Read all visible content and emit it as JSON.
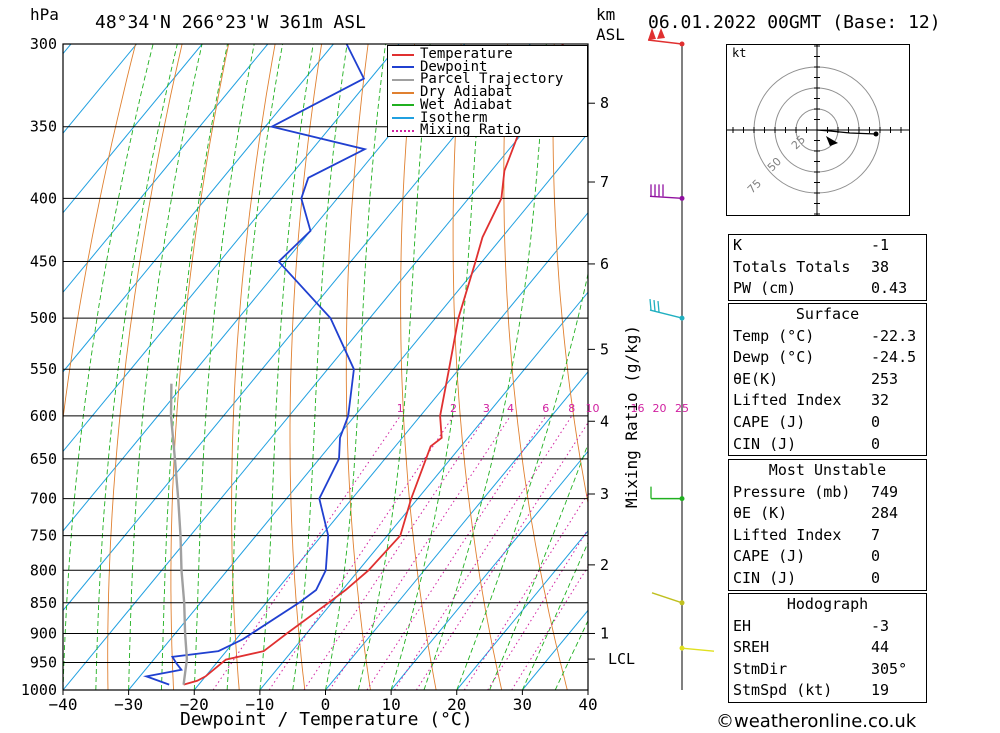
{
  "header": {
    "pressure_unit": "hPa",
    "location": "48°34'N 266°23'W 361m ASL",
    "height_unit": "km",
    "height_unit2": "ASL",
    "datetime": "06.01.2022 00GMT (Base: 12)"
  },
  "chart_data": {
    "type": "line",
    "title": "",
    "xlabel": "Dewpoint / Temperature (°C)",
    "ylabel": "hPa",
    "xlim": [
      -40,
      40
    ],
    "ylim": [
      1000,
      300
    ],
    "pressure_ticks": [
      300,
      350,
      400,
      450,
      500,
      550,
      600,
      650,
      700,
      750,
      800,
      850,
      900,
      950,
      1000
    ],
    "temperature_ticks": [
      -40,
      -30,
      -20,
      -10,
      0,
      10,
      20,
      30,
      40
    ],
    "height_ticks_km": [
      {
        "label": "8",
        "p": 335
      },
      {
        "label": "7",
        "p": 388
      },
      {
        "label": "6",
        "p": 452
      },
      {
        "label": "5",
        "p": 530
      },
      {
        "label": "4",
        "p": 606
      },
      {
        "label": "3",
        "p": 694
      },
      {
        "label": "2",
        "p": 792
      },
      {
        "label": "1",
        "p": 900
      },
      {
        "label": "LCL",
        "p": 944
      }
    ],
    "mixing_ratio_label": "Mixing Ratio (g/kg)",
    "mixing_ratio_values": [
      "1",
      "2",
      "3",
      "4",
      "6",
      "8",
      "10",
      "16",
      "20",
      "25"
    ],
    "legend": {
      "placement": "top-right",
      "entries": [
        {
          "name": "Temperature",
          "color": "#e03030",
          "style": "solid"
        },
        {
          "name": "Dewpoint",
          "color": "#2040d0",
          "style": "solid"
        },
        {
          "name": "Parcel Trajectory",
          "color": "#a0a0a0",
          "style": "solid"
        },
        {
          "name": "Dry Adiabat",
          "color": "#e08030",
          "style": "solid"
        },
        {
          "name": "Wet Adiabat",
          "color": "#20b020",
          "style": "solid"
        },
        {
          "name": "Isotherm",
          "color": "#20a0e0",
          "style": "solid"
        },
        {
          "name": "Mixing Ratio",
          "color": "#d020a0",
          "style": "dotted"
        }
      ]
    },
    "series": [
      {
        "name": "Temperature",
        "color": "#e03030",
        "points": [
          {
            "p": 300,
            "t": -45
          },
          {
            "p": 320,
            "t": -44
          },
          {
            "p": 350,
            "t": -41
          },
          {
            "p": 380,
            "t": -38
          },
          {
            "p": 400,
            "t": -35
          },
          {
            "p": 430,
            "t": -33
          },
          {
            "p": 450,
            "t": -31
          },
          {
            "p": 500,
            "t": -26.5
          },
          {
            "p": 550,
            "t": -21.5
          },
          {
            "p": 600,
            "t": -17
          },
          {
            "p": 625,
            "t": -14
          },
          {
            "p": 635,
            "t": -14.6
          },
          {
            "p": 700,
            "t": -11
          },
          {
            "p": 750,
            "t": -8
          },
          {
            "p": 800,
            "t": -8.5
          },
          {
            "p": 830,
            "t": -9.5
          },
          {
            "p": 850,
            "t": -10.5
          },
          {
            "p": 900,
            "t": -13
          },
          {
            "p": 930,
            "t": -14.3
          },
          {
            "p": 945,
            "t": -19
          },
          {
            "p": 975,
            "t": -20
          },
          {
            "p": 983,
            "t": -20.7
          },
          {
            "p": 990,
            "t": -22.3
          }
        ]
      },
      {
        "name": "Dewpoint",
        "color": "#2040d0",
        "points": [
          {
            "p": 300,
            "t": -78
          },
          {
            "p": 320,
            "t": -71
          },
          {
            "p": 350,
            "t": -79
          },
          {
            "p": 365,
            "t": -62
          },
          {
            "p": 385,
            "t": -67
          },
          {
            "p": 400,
            "t": -65.5
          },
          {
            "p": 425,
            "t": -60
          },
          {
            "p": 450,
            "t": -61
          },
          {
            "p": 500,
            "t": -46
          },
          {
            "p": 550,
            "t": -36
          },
          {
            "p": 600,
            "t": -31
          },
          {
            "p": 625,
            "t": -29.5
          },
          {
            "p": 650,
            "t": -27
          },
          {
            "p": 700,
            "t": -25
          },
          {
            "p": 750,
            "t": -19
          },
          {
            "p": 800,
            "t": -15
          },
          {
            "p": 830,
            "t": -14
          },
          {
            "p": 850,
            "t": -15
          },
          {
            "p": 910,
            "t": -19
          },
          {
            "p": 930,
            "t": -21.2
          },
          {
            "p": 940,
            "t": -27.5
          },
          {
            "p": 952,
            "t": -26
          },
          {
            "p": 963,
            "t": -24.5
          },
          {
            "p": 975,
            "t": -29
          },
          {
            "p": 990,
            "t": -24.5
          }
        ]
      },
      {
        "name": "Parcel Trajectory",
        "color": "#a0a0a0",
        "points": [
          {
            "p": 990,
            "t": -22.3
          },
          {
            "p": 944,
            "t": -25
          },
          {
            "p": 900,
            "t": -28.5
          },
          {
            "p": 850,
            "t": -32.5
          },
          {
            "p": 800,
            "t": -37
          },
          {
            "p": 750,
            "t": -41.5
          },
          {
            "p": 700,
            "t": -46.5
          },
          {
            "p": 650,
            "t": -52
          },
          {
            "p": 600,
            "t": -58
          },
          {
            "p": 565,
            "t": -62
          }
        ]
      }
    ],
    "wind_barbs_p": [
      300,
      400,
      500,
      700,
      850,
      925
    ]
  },
  "hodograph": {
    "unit": "kt",
    "ring_labels": [
      "25",
      "50",
      "75"
    ]
  },
  "indices": {
    "k_label": "K",
    "k": "-1",
    "tt_label": "Totals Totals",
    "tt": "38",
    "pw_label": "PW (cm)",
    "pw": "0.43"
  },
  "surface": {
    "title": "Surface",
    "temp_label": "Temp (°C)",
    "temp": "-22.3",
    "dewp_label": "Dewp (°C)",
    "dewp": "-24.5",
    "theta_label": "θE(K)",
    "theta": "253",
    "li_label": "Lifted Index",
    "li": "32",
    "cape_label": "CAPE (J)",
    "cape": "0",
    "cin_label": "CIN (J)",
    "cin": "0"
  },
  "most_unstable": {
    "title": "Most Unstable",
    "pressure_label": "Pressure (mb)",
    "pressure": "749",
    "theta_label": "θE (K)",
    "theta": "284",
    "li_label": "Lifted Index",
    "li": "7",
    "cape_label": "CAPE (J)",
    "cape": "0",
    "cin_label": "CIN (J)",
    "cin": "0"
  },
  "hodograph_stats": {
    "title": "Hodograph",
    "eh_label": "EH",
    "eh": "-3",
    "sreh_label": "SREH",
    "sreh": "44",
    "stmdir_label": "StmDir",
    "stmdir": "305°",
    "stmspd_label": "StmSpd (kt)",
    "stmspd": "19"
  },
  "footer": {
    "copyright": "©weatheronline.co.uk"
  }
}
